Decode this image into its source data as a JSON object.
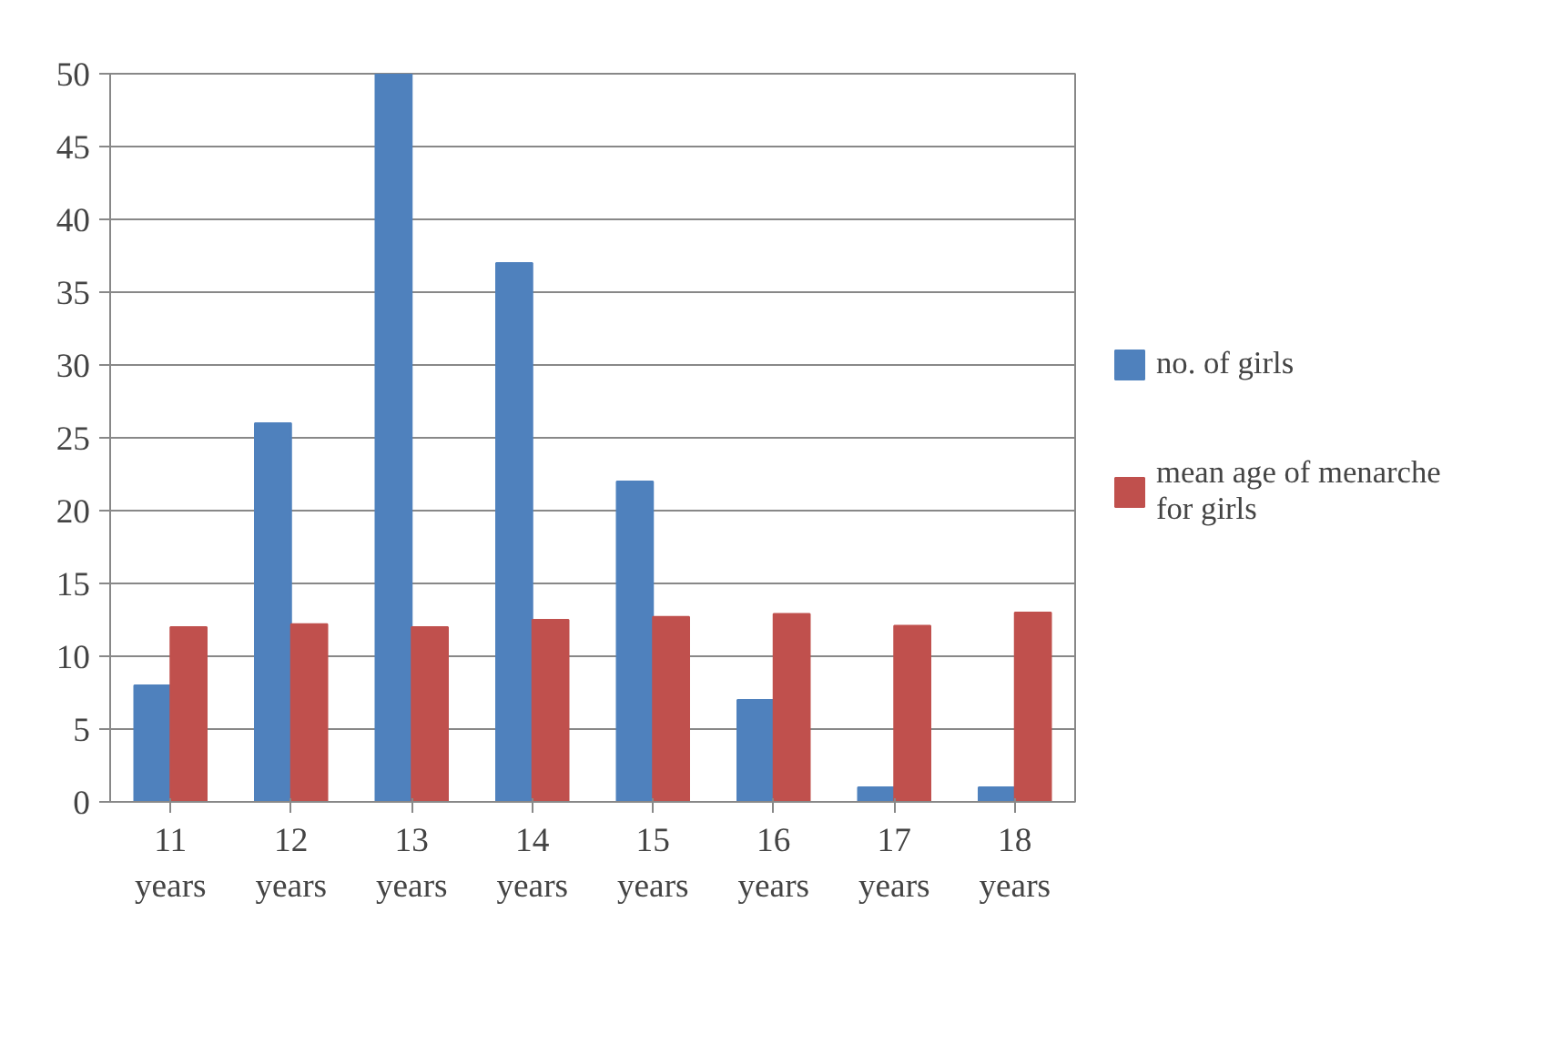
{
  "chart_data": {
    "type": "bar",
    "categories": [
      "11 years",
      "12 years",
      "13 years",
      "14 years",
      "15 years",
      "16 years",
      "17 years",
      "18 years"
    ],
    "series": [
      {
        "name": "no. of girls",
        "color": "#4f81bd",
        "values": [
          8,
          26,
          50,
          37,
          22,
          7,
          1,
          1
        ]
      },
      {
        "name": "mean age of menarche for girls",
        "color": "#c0504d",
        "values": [
          12,
          12.2,
          12,
          12.5,
          12.7,
          12.9,
          12.1,
          13
        ]
      }
    ],
    "ylim": [
      0,
      50
    ],
    "yticks": [
      0,
      5,
      10,
      15,
      20,
      25,
      30,
      35,
      40,
      45,
      50
    ],
    "grid": "y",
    "legend": "right"
  }
}
